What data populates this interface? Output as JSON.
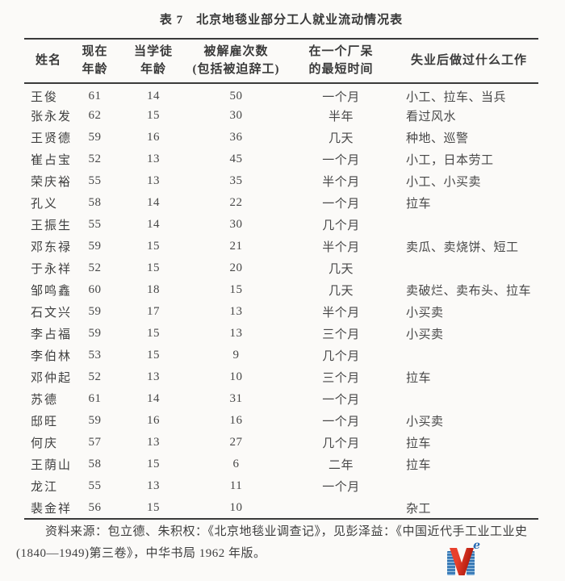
{
  "page": {
    "title": "表 7　北京地毯业部分工人就业流动情况表"
  },
  "table": {
    "headers": [
      "姓名",
      "现在\n年龄",
      "当学徒\n年龄",
      "被解雇次数\n(包括被迫辞工)",
      "在一个厂呆\n的最短时间",
      "失业后做过什么工作"
    ],
    "rows": [
      [
        "王俊",
        "61",
        "14",
        "50",
        "一个月",
        "小工、拉车、当兵"
      ],
      [
        "张永发",
        "62",
        "15",
        "30",
        "半年",
        "看过风水"
      ],
      [
        "王贤德",
        "59",
        "16",
        "36",
        "几天",
        "种地、巡警"
      ],
      [
        "崔占宝",
        "52",
        "13",
        "45",
        "一个月",
        "小工，日本劳工"
      ],
      [
        "荣庆裕",
        "55",
        "13",
        "35",
        "半个月",
        "小工、小买卖"
      ],
      [
        "孔义",
        "58",
        "14",
        "22",
        "一个月",
        "拉车"
      ],
      [
        "王振生",
        "55",
        "14",
        "30",
        "几个月",
        ""
      ],
      [
        "邓东禄",
        "59",
        "15",
        "21",
        "半个月",
        "卖瓜、卖烧饼、短工"
      ],
      [
        "于永祥",
        "52",
        "15",
        "20",
        "几天",
        ""
      ],
      [
        "邹鸣鑫",
        "60",
        "18",
        "15",
        "几天",
        "卖破烂、卖布头、拉车"
      ],
      [
        "石文兴",
        "59",
        "17",
        "13",
        "半个月",
        "小买卖"
      ],
      [
        "李占福",
        "59",
        "15",
        "13",
        "三个月",
        "小买卖"
      ],
      [
        "李伯林",
        "53",
        "15",
        "9",
        "几个月",
        ""
      ],
      [
        "邓仲起",
        "52",
        "13",
        "10",
        "三个月",
        "拉车"
      ],
      [
        "苏德",
        "61",
        "14",
        "31",
        "一个月",
        ""
      ],
      [
        "邸旺",
        "59",
        "16",
        "16",
        "一个月",
        "小买卖"
      ],
      [
        "何庆",
        "57",
        "13",
        "27",
        "几个月",
        "拉车"
      ],
      [
        "王荫山",
        "58",
        "15",
        "6",
        "二年",
        "拉车"
      ],
      [
        "龙江",
        "55",
        "13",
        "11",
        "一个月",
        ""
      ],
      [
        "裴金祥",
        "56",
        "15",
        "10",
        "",
        "杂工"
      ]
    ]
  },
  "footer": {
    "lines": [
      "资料来源：包立德、朱积权：《北京地毯业调查记》，见彭泽益：《中国近代手工业工业史",
      "(1840—1949)第三卷》，中华书局 1962 年版。"
    ]
  },
  "logo": {
    "superscript": "e",
    "color_red": "#c5271a",
    "color_blue": "#2a6cb3"
  }
}
